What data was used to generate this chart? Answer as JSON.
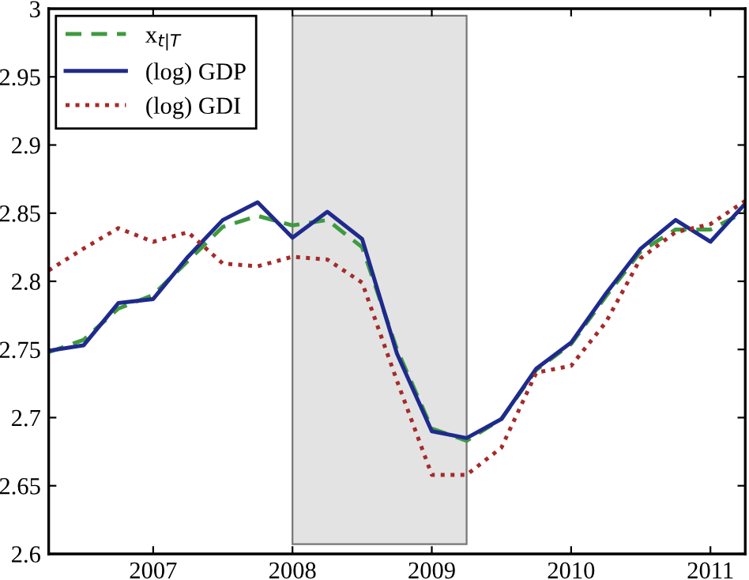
{
  "chart_data": {
    "type": "line",
    "x": [
      2006.25,
      2006.5,
      2006.75,
      2007.0,
      2007.25,
      2007.5,
      2007.75,
      2008.0,
      2008.25,
      2008.5,
      2008.75,
      2009.0,
      2009.25,
      2009.5,
      2009.75,
      2010.0,
      2010.25,
      2010.5,
      2010.75,
      2011.0,
      2011.25
    ],
    "series": [
      {
        "name": "x$_{t|T}$",
        "color": "#3f9a3f",
        "line_style": "dashed",
        "values": [
          2.748,
          2.757,
          2.78,
          2.79,
          2.815,
          2.84,
          2.848,
          2.841,
          2.845,
          2.825,
          2.75,
          2.692,
          2.683,
          2.699,
          2.735,
          2.754,
          2.789,
          2.822,
          2.838,
          2.838,
          2.851
        ]
      },
      {
        "name": "(log) GDP",
        "color": "#1f2a8c",
        "line_style": "solid",
        "values": [
          2.749,
          2.753,
          2.784,
          2.787,
          2.818,
          2.845,
          2.858,
          2.832,
          2.851,
          2.831,
          2.747,
          2.69,
          2.685,
          2.699,
          2.736,
          2.755,
          2.791,
          2.824,
          2.845,
          2.829,
          2.857
        ]
      },
      {
        "name": "(log) GDI",
        "color": "#a52a2a",
        "line_style": "dotted",
        "values": [
          2.808,
          2.824,
          2.839,
          2.829,
          2.836,
          2.813,
          2.811,
          2.818,
          2.816,
          2.799,
          2.727,
          2.658,
          2.658,
          2.678,
          2.733,
          2.738,
          2.77,
          2.817,
          2.836,
          2.842,
          2.859
        ]
      }
    ],
    "bands": [
      {
        "axis": "x",
        "from": 2008.0,
        "to": 2009.25,
        "color": "#e3e3e3"
      }
    ],
    "xlim": [
      2006.25,
      2011.25
    ],
    "xticks": [
      2007,
      2008,
      2009,
      2010,
      2011
    ],
    "ylim": [
      2.6,
      3.0
    ],
    "yticks": [
      2.6,
      2.65,
      2.7,
      2.75,
      2.8,
      2.85,
      2.9,
      2.95,
      {
        "value": 3.0,
        "label": "3"
      }
    ],
    "grid": false,
    "legend": "top left"
  }
}
